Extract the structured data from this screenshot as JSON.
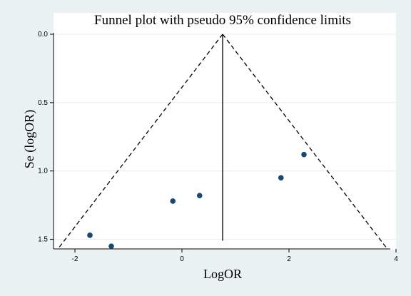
{
  "chart_data": {
    "type": "scatter",
    "title": "Funnel plot with pseudo 95% confidence limits",
    "xlabel": "LogOR",
    "ylabel": "Se (logOR)",
    "xlim": [
      -2.4,
      4.0
    ],
    "ylim": [
      0.0,
      1.57
    ],
    "y_reversed": true,
    "x_ticks": [
      "-2",
      "0",
      "2",
      "4"
    ],
    "x_tick_values": [
      -2,
      0,
      2,
      4
    ],
    "y_ticks": [
      "0.0",
      "0.5",
      "1.0",
      "1.5"
    ],
    "y_tick_values": [
      0.0,
      0.5,
      1.0,
      1.5
    ],
    "grid": true,
    "pooled_estimate": 0.76,
    "confidence_limit_z": 1.96,
    "se_max": 1.56,
    "point_color": "#1a476f",
    "points": [
      {
        "x": -1.72,
        "y": 1.47
      },
      {
        "x": -1.32,
        "y": 1.55
      },
      {
        "x": -0.17,
        "y": 1.22
      },
      {
        "x": 0.33,
        "y": 1.18
      },
      {
        "x": 1.85,
        "y": 1.05
      },
      {
        "x": 2.28,
        "y": 0.88
      }
    ]
  }
}
